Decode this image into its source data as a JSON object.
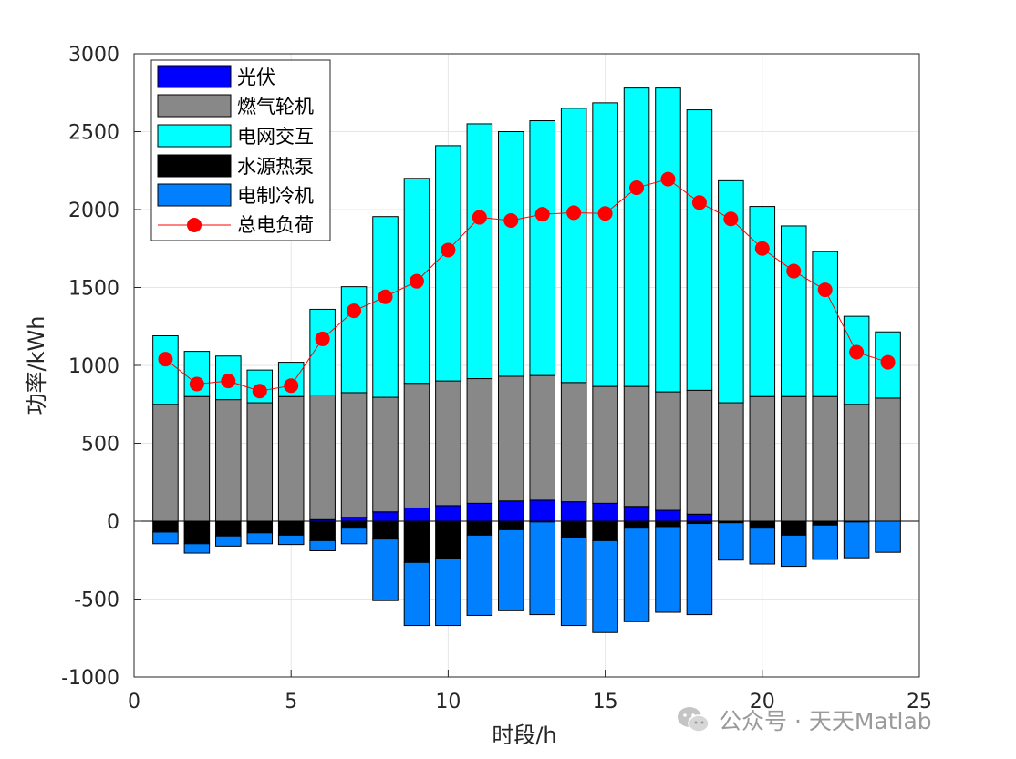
{
  "chart_data": {
    "type": "bar",
    "stacked": true,
    "title": "",
    "xlabel": "时段/h",
    "ylabel": "功率/kWh",
    "xlim": [
      0,
      25
    ],
    "ylim": [
      -1000,
      3000
    ],
    "xticks": [
      0,
      5,
      10,
      15,
      20,
      25
    ],
    "yticks": [
      -1000,
      -500,
      0,
      500,
      1000,
      1500,
      2000,
      2500,
      3000
    ],
    "grid": true,
    "legend_position": "top-left",
    "x": [
      1,
      2,
      3,
      4,
      5,
      6,
      7,
      8,
      9,
      10,
      11,
      12,
      13,
      14,
      15,
      16,
      17,
      18,
      19,
      20,
      21,
      22,
      23,
      24
    ],
    "series": [
      {
        "name": "光伏",
        "color": "#0000ff",
        "values": [
          0,
          0,
          0,
          0,
          0,
          10,
          25,
          60,
          85,
          100,
          115,
          130,
          135,
          125,
          115,
          95,
          70,
          45,
          0,
          0,
          0,
          0,
          0,
          0
        ]
      },
      {
        "name": "燃气轮机",
        "color": "#888888",
        "values": [
          750,
          800,
          780,
          760,
          800,
          800,
          800,
          735,
          800,
          800,
          800,
          800,
          800,
          765,
          750,
          770,
          760,
          795,
          760,
          800,
          800,
          800,
          750,
          790
        ]
      },
      {
        "name": "电网交互",
        "color": "#00ffff",
        "values": [
          440,
          290,
          280,
          210,
          220,
          550,
          680,
          1160,
          1315,
          1510,
          1635,
          1570,
          1635,
          1760,
          1820,
          1915,
          1950,
          1800,
          1425,
          1220,
          1095,
          930,
          565,
          425
        ]
      },
      {
        "name": "水源热泵",
        "color": "#000000",
        "values": [
          -70,
          -145,
          -95,
          -75,
          -90,
          -125,
          -45,
          -115,
          -265,
          -240,
          -90,
          -55,
          -5,
          -105,
          -125,
          -45,
          -35,
          -15,
          -10,
          -45,
          -90,
          -25,
          -5,
          0
        ]
      },
      {
        "name": "电制冷机",
        "color": "#0080ff",
        "values": [
          -75,
          -60,
          -65,
          -70,
          -60,
          -65,
          -100,
          -395,
          -405,
          -430,
          -515,
          -520,
          -595,
          -565,
          -590,
          -600,
          -550,
          -585,
          -240,
          -230,
          -200,
          -220,
          -230,
          -200
        ]
      }
    ],
    "line": {
      "name": "总电负荷",
      "color": "#ff0000",
      "values": [
        1040,
        880,
        900,
        835,
        870,
        1170,
        1350,
        1440,
        1540,
        1740,
        1950,
        1930,
        1970,
        1980,
        1975,
        2140,
        2195,
        2045,
        1940,
        1750,
        1605,
        1485,
        1085,
        1020
      ]
    }
  },
  "watermark": {
    "text": "公众号 · 天天Matlab",
    "icon": "wechat-icon"
  }
}
